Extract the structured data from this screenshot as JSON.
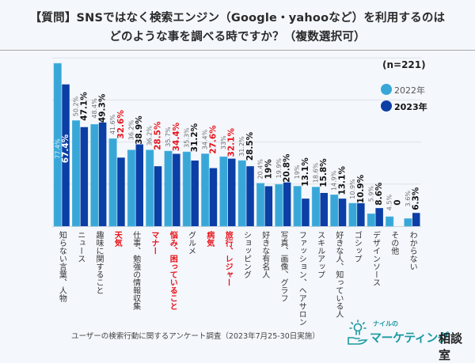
{
  "header": {
    "title_line1": "【質問】SNSではなく検索エンジン（Google・yahooなど）を利用するのは",
    "title_line2": "どのような事を調べる時ですか？（複数選択可）"
  },
  "footer": {
    "source": "ユーザーの検索行動に関するアンケート調査（2023年7月25-30日実施）"
  },
  "logo": {
    "small": "ナイルの",
    "main": "マーケティング",
    "suffix": "相談室",
    "icon": "lightbulb-hand-icon"
  },
  "colors": {
    "series_2022": "#38a7d8",
    "series_2023": "#0b3fa6",
    "highlight": "#e8141b",
    "label_gray": "#6e6e6e",
    "label_dark": "#111111"
  },
  "chart_data": {
    "type": "bar",
    "title": "【質問】SNSではなく検索エンジン（Google・yahooなど）を利用するのはどのような事を調べる時ですか？（複数選択可）",
    "sample": "(n=221)",
    "xlabel": "",
    "ylabel": "",
    "ylim": [
      0,
      80
    ],
    "grid": true,
    "gridlines": [
      20,
      40,
      60,
      80
    ],
    "legend_position": "top-right",
    "categories": [
      "知らない言葉、人物",
      "ニュース",
      "趣味に関すること",
      "天気",
      "仕事、勉強の情報収集",
      "マナー",
      "悩み、困っていること",
      "グルメ",
      "病気",
      "旅行、レジャー",
      "ショッピング",
      "好きな有名人",
      "写真、画像、グラフ",
      "ファッション、ヘアサロン",
      "スキルアップ",
      "好きな人、知っている人",
      "ゴシップ",
      "デザインソース",
      "その他",
      "わからない"
    ],
    "highlighted": [
      false,
      false,
      false,
      true,
      false,
      true,
      true,
      false,
      true,
      true,
      false,
      false,
      false,
      false,
      false,
      false,
      false,
      false,
      false,
      false
    ],
    "series": [
      {
        "name": "2022年",
        "values": [
          77.4,
          50.2,
          48.4,
          41.6,
          36.2,
          36.2,
          35.7,
          35.3,
          34.4,
          33,
          31.2,
          20.4,
          19.9,
          19,
          18.6,
          14.9,
          10.9,
          5.9,
          4.5,
          3.6
        ],
        "labels": [
          "77.4%",
          "50.2%",
          "48.4%",
          "41.6%",
          "36.2%",
          "36.2%",
          "35.7%",
          "35.3%",
          "34.4%",
          "33%",
          "31.2%",
          "20.4%",
          "19.9%",
          "19%",
          "18.6%",
          "14.9%",
          "10.9%",
          "5.9%",
          "4.5%",
          "3.6%"
        ]
      },
      {
        "name": "2023年",
        "values": [
          67.4,
          47.1,
          49.3,
          32.6,
          38.9,
          28.5,
          34.4,
          31.2,
          27.6,
          32.1,
          28.5,
          19,
          20.8,
          13.1,
          15.8,
          13.1,
          10.9,
          8.6,
          0,
          6.3
        ],
        "labels": [
          "67.4%",
          "47.1%",
          "49.3%",
          "32.6%",
          "38.9%",
          "28.5%",
          "34.4%",
          "31.2%",
          "27.6%",
          "32.1%",
          "28.5%",
          "19%",
          "20.8%",
          "13.1%",
          "15.8%",
          "13.1%",
          "10.9%",
          "8.6%",
          "0",
          "6.3%"
        ]
      }
    ]
  }
}
